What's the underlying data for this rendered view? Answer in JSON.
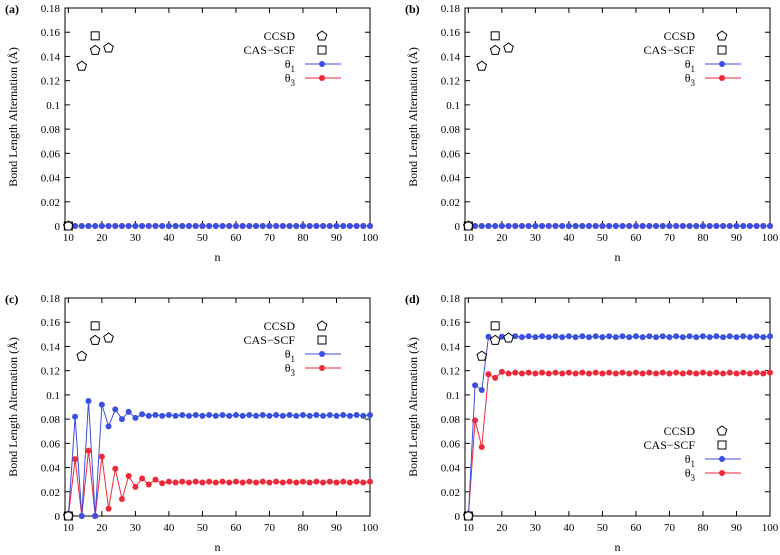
{
  "chart_data": [
    {
      "type": "scatter",
      "panel_label": "(a)",
      "xlabel": "n",
      "ylabel": "Bond Length Alternation (Å)",
      "xlim": [
        9,
        100
      ],
      "ylim": [
        0,
        0.18
      ],
      "xticks": [
        10,
        20,
        30,
        40,
        50,
        60,
        70,
        80,
        90,
        100
      ],
      "yticks": [
        0,
        0.02,
        0.04,
        0.06,
        0.08,
        0.1,
        0.12,
        0.14,
        0.16,
        0.18
      ],
      "legend_position": "top-right",
      "series": [
        {
          "name": "CCSD",
          "marker": "pentagon",
          "color": "#000000",
          "x": [
            10,
            14,
            18,
            22
          ],
          "y": [
            0,
            0.132,
            0.145,
            0.147
          ]
        },
        {
          "name": "CAS−SCF",
          "marker": "square",
          "color": "#000000",
          "x": [
            10,
            18
          ],
          "y": [
            0,
            0.157
          ]
        },
        {
          "name": "θ1",
          "marker": "circle-line",
          "color": "#3b4fe0",
          "x": [],
          "y": []
        },
        {
          "name": "θ3",
          "marker": "circle-line",
          "color": "#ee2a3a",
          "x": [],
          "y": []
        }
      ],
      "curves": {
        "theta1": "zero",
        "theta3": "zero"
      }
    },
    {
      "type": "scatter",
      "panel_label": "(b)",
      "xlabel": "n",
      "ylabel": "Bond Length Alternation (Å)",
      "xlim": [
        9,
        100
      ],
      "ylim": [
        0,
        0.18
      ],
      "xticks": [
        10,
        20,
        30,
        40,
        50,
        60,
        70,
        80,
        90,
        100
      ],
      "yticks": [
        0,
        0.02,
        0.04,
        0.06,
        0.08,
        0.1,
        0.12,
        0.14,
        0.16,
        0.18
      ],
      "legend_position": "top-right",
      "series": [
        {
          "name": "CCSD",
          "marker": "pentagon",
          "color": "#000000",
          "x": [
            10,
            14,
            18,
            22
          ],
          "y": [
            0,
            0.132,
            0.145,
            0.147
          ]
        },
        {
          "name": "CAS−SCF",
          "marker": "square",
          "color": "#000000",
          "x": [
            10,
            18
          ],
          "y": [
            0,
            0.157
          ]
        },
        {
          "name": "θ1",
          "marker": "circle-line",
          "color": "#3b4fe0",
          "x": [],
          "y": []
        },
        {
          "name": "θ3",
          "marker": "circle-line",
          "color": "#ee2a3a",
          "x": [],
          "y": []
        }
      ],
      "curves": {
        "theta1": "zero",
        "theta3": "zero"
      }
    },
    {
      "type": "scatter",
      "panel_label": "(c)",
      "xlabel": "n",
      "ylabel": "Bond Length Alternation (Å)",
      "xlim": [
        9,
        100
      ],
      "ylim": [
        0,
        0.18
      ],
      "xticks": [
        10,
        20,
        30,
        40,
        50,
        60,
        70,
        80,
        90,
        100
      ],
      "yticks": [
        0,
        0.02,
        0.04,
        0.06,
        0.08,
        0.1,
        0.12,
        0.14,
        0.16,
        0.18
      ],
      "legend_position": "top-right",
      "series": [
        {
          "name": "CCSD",
          "marker": "pentagon",
          "color": "#000000",
          "x": [
            10,
            14,
            18,
            22
          ],
          "y": [
            0,
            0.132,
            0.145,
            0.147
          ]
        },
        {
          "name": "CAS−SCF",
          "marker": "square",
          "color": "#000000",
          "x": [
            10,
            18
          ],
          "y": [
            0,
            0.157
          ]
        },
        {
          "name": "θ1",
          "marker": "circle-line",
          "color": "#3b4fe0",
          "x": [],
          "y": []
        },
        {
          "name": "θ3",
          "marker": "circle-line",
          "color": "#ee2a3a",
          "x": [],
          "y": []
        }
      ],
      "curves": {
        "theta1": {
          "head_x": [
            10,
            12,
            14,
            16,
            18,
            20,
            22,
            24,
            26,
            28,
            30,
            32
          ],
          "head_y": [
            0,
            0.082,
            0,
            0.095,
            0,
            0.092,
            0.074,
            0.088,
            0.08,
            0.086,
            0.081,
            0.084
          ],
          "tail": 0.083
        },
        "theta3": {
          "head_x": [
            10,
            12,
            14,
            16,
            18,
            20,
            22,
            24,
            26,
            28,
            30,
            32,
            34,
            36,
            38
          ],
          "head_y": [
            0,
            0.047,
            0,
            0.054,
            0,
            0.049,
            0.006,
            0.039,
            0.014,
            0.033,
            0.024,
            0.031,
            0.026,
            0.03,
            0.027
          ],
          "tail": 0.028
        }
      }
    },
    {
      "type": "scatter",
      "panel_label": "(d)",
      "xlabel": "n",
      "ylabel": "Bond Length Alternation (Å)",
      "xlim": [
        9,
        100
      ],
      "ylim": [
        0,
        0.18
      ],
      "xticks": [
        10,
        20,
        30,
        40,
        50,
        60,
        70,
        80,
        90,
        100
      ],
      "yticks": [
        0,
        0.02,
        0.04,
        0.06,
        0.08,
        0.1,
        0.12,
        0.14,
        0.16,
        0.18
      ],
      "legend_position": "bottom-right",
      "series": [
        {
          "name": "CCSD",
          "marker": "pentagon",
          "color": "#000000",
          "x": [
            10,
            14,
            18,
            22
          ],
          "y": [
            0,
            0.132,
            0.145,
            0.147
          ]
        },
        {
          "name": "CAS−SCF",
          "marker": "square",
          "color": "#000000",
          "x": [
            10,
            18
          ],
          "y": [
            0,
            0.157
          ]
        },
        {
          "name": "θ1",
          "marker": "circle-line",
          "color": "#3b4fe0",
          "x": [],
          "y": []
        },
        {
          "name": "θ3",
          "marker": "circle-line",
          "color": "#ee2a3a",
          "x": [],
          "y": []
        }
      ],
      "curves": {
        "theta1": {
          "head_x": [
            10,
            12,
            14,
            16,
            18,
            20
          ],
          "head_y": [
            0,
            0.108,
            0.104,
            0.148,
            0.145,
            0.148
          ],
          "tail": 0.148
        },
        "theta3": {
          "head_x": [
            10,
            12,
            14,
            16,
            18,
            20
          ],
          "head_y": [
            0,
            0.079,
            0.057,
            0.117,
            0.114,
            0.119
          ],
          "tail": 0.118
        }
      }
    }
  ]
}
